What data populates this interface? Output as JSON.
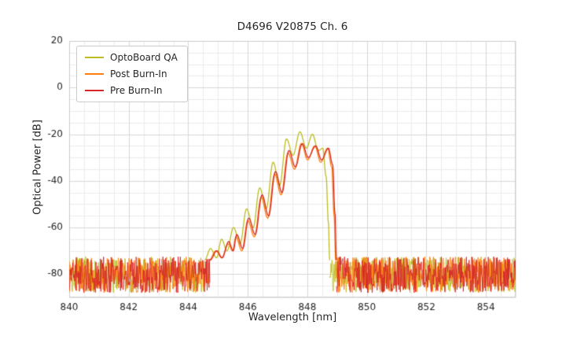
{
  "chart_data": {
    "type": "line",
    "title": "D4696 V20875 Ch. 6",
    "xlabel": "Wavelength [nm]",
    "ylabel": "Optical Power [dB]",
    "xlim": [
      840,
      855
    ],
    "ylim": [
      -90,
      20
    ],
    "xticks": [
      840,
      842,
      844,
      846,
      848,
      850,
      852,
      854
    ],
    "yticks": [
      20,
      0,
      -20,
      -40,
      -60,
      -80
    ],
    "grid": true,
    "minor_grid_x_nm": 0.5,
    "minor_grid_y_db": 5,
    "legend_position": "upper left",
    "noise_floor": {
      "top_db": -72.5,
      "bottom_db": -88,
      "sample_step_nm": 0.015
    },
    "series": [
      {
        "name": "OptoBoard QA",
        "color": "#bcbd22",
        "seed": 101,
        "signal_points": [
          [
            844.55,
            -74
          ],
          [
            844.75,
            -69
          ],
          [
            844.95,
            -73
          ],
          [
            845.12,
            -65
          ],
          [
            845.3,
            -70
          ],
          [
            845.52,
            -60
          ],
          [
            845.74,
            -67
          ],
          [
            845.96,
            -52
          ],
          [
            846.18,
            -60
          ],
          [
            846.4,
            -43
          ],
          [
            846.62,
            -52
          ],
          [
            846.85,
            -32
          ],
          [
            847.07,
            -42
          ],
          [
            847.3,
            -22
          ],
          [
            847.52,
            -29
          ],
          [
            847.75,
            -19
          ],
          [
            847.97,
            -26
          ],
          [
            848.17,
            -20
          ],
          [
            848.37,
            -27
          ],
          [
            848.52,
            -26
          ],
          [
            848.63,
            -38
          ],
          [
            848.71,
            -58
          ],
          [
            848.75,
            -74
          ]
        ]
      },
      {
        "name": "Post Burn-In",
        "color": "#ff7f0e",
        "seed": 202,
        "signal_points": [
          [
            844.7,
            -74
          ],
          [
            844.93,
            -70
          ],
          [
            845.12,
            -73
          ],
          [
            845.34,
            -67
          ],
          [
            845.49,
            -70
          ],
          [
            845.6,
            -64
          ],
          [
            845.8,
            -70
          ],
          [
            846.0,
            -57
          ],
          [
            846.22,
            -64
          ],
          [
            846.45,
            -47
          ],
          [
            846.67,
            -56
          ],
          [
            846.9,
            -37
          ],
          [
            847.12,
            -46
          ],
          [
            847.35,
            -28
          ],
          [
            847.57,
            -35
          ],
          [
            847.8,
            -24
          ],
          [
            848.01,
            -31
          ],
          [
            848.25,
            -25
          ],
          [
            848.45,
            -32
          ],
          [
            848.68,
            -26
          ],
          [
            848.82,
            -34
          ],
          [
            848.9,
            -55
          ],
          [
            848.95,
            -74
          ]
        ]
      },
      {
        "name": "Pre Burn-In",
        "color": "#d62728",
        "seed": 303,
        "signal_points": [
          [
            844.73,
            -74
          ],
          [
            844.96,
            -70
          ],
          [
            845.14,
            -73
          ],
          [
            845.36,
            -66
          ],
          [
            845.51,
            -70
          ],
          [
            845.63,
            -63
          ],
          [
            845.83,
            -69
          ],
          [
            846.03,
            -56
          ],
          [
            846.25,
            -63
          ],
          [
            846.48,
            -46
          ],
          [
            846.7,
            -55
          ],
          [
            846.93,
            -36
          ],
          [
            847.15,
            -45
          ],
          [
            847.38,
            -27
          ],
          [
            847.6,
            -34
          ],
          [
            847.83,
            -24
          ],
          [
            848.03,
            -30
          ],
          [
            848.28,
            -25
          ],
          [
            848.48,
            -31
          ],
          [
            848.71,
            -26
          ],
          [
            848.85,
            -33
          ],
          [
            848.93,
            -54
          ],
          [
            848.98,
            -74
          ]
        ]
      }
    ]
  }
}
